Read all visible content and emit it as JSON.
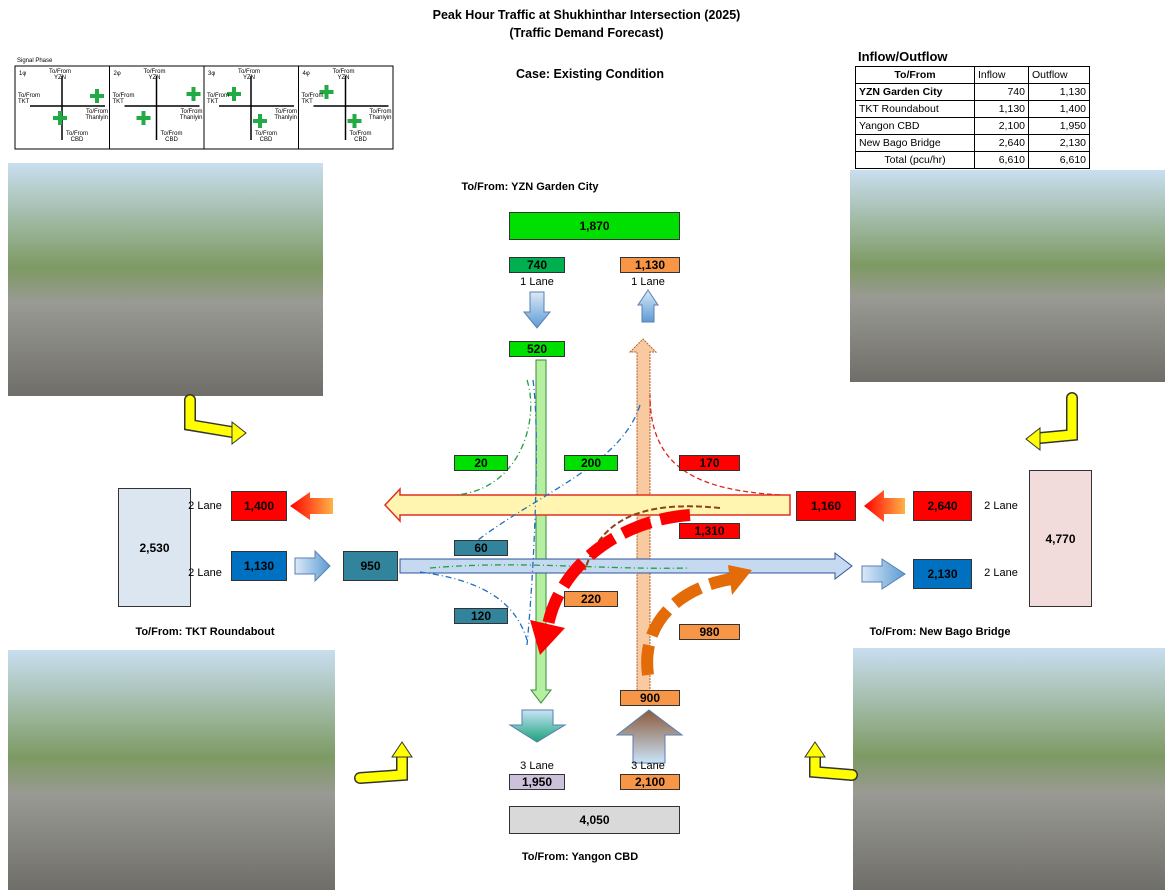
{
  "title": "Peak Hour Traffic at Shukhinthar Intersection (2025)",
  "subtitle": "(Traffic Demand Forecast)",
  "case": "Case: Existing Condition",
  "signal_phase": {
    "label": "Signal Phase",
    "phases": [
      {
        "name": "1φ",
        "top": "To/From\nYZN",
        "left": "To/From\nTKT",
        "right": "To/From\nThanlyin",
        "bottom": "To/From\nCBD"
      },
      {
        "name": "2φ",
        "top": "To/From\nYZN",
        "left": "To/From\nTKT",
        "right": "To/From\nThanlyin",
        "bottom": "To/From\nCBD"
      },
      {
        "name": "3φ",
        "top": "To/From\nYZN",
        "left": "To/From\nTKT",
        "right": "To/From\nThanlyin",
        "bottom": "To/From\nCBD"
      },
      {
        "name": "4φ",
        "top": "To/From\nYZN",
        "left": "To/From\nTKT",
        "right": "To/From\nThanlyin",
        "bottom": "To/From\nCBD"
      }
    ]
  },
  "inflow_outflow": {
    "title": "Inflow/Outflow",
    "header": [
      "To/From",
      "Inflow",
      "Outflow"
    ],
    "rows": [
      [
        "YZN Garden City",
        "740",
        "1,130"
      ],
      [
        "TKT Roundabout",
        "1,130",
        "1,400"
      ],
      [
        "Yangon CBD",
        "2,100",
        "1,950"
      ],
      [
        "New Bago Bridge",
        "2,640",
        "2,130"
      ],
      [
        "Total (pcu/hr)",
        "6,610",
        "6,610"
      ]
    ]
  },
  "north": {
    "label": "To/From: YZN Garden City",
    "total": "1,870",
    "inflow": "740",
    "outflow": "1,130",
    "lanes_in": "1 Lane",
    "lanes_out": "1 Lane",
    "approach": "520"
  },
  "west": {
    "label": "To/From: TKT Roundabout",
    "total": "2,530",
    "inflow": "1,130",
    "outflow": "1,400",
    "lanes_in": "2 Lane",
    "lanes_out": "2 Lane",
    "approach": "950"
  },
  "east": {
    "label": "To/From: New Bago Bridge",
    "total": "4,770",
    "inflow": "2,640",
    "outflow": "2,130",
    "lanes_in": "2 Lane",
    "lanes_out": "2 Lane",
    "approach": "1,160"
  },
  "south": {
    "label": "To/From: Yangon CBD",
    "total": "4,050",
    "inflow": "2,100",
    "outflow": "1,950",
    "lanes_in": "3 Lane",
    "lanes_out": "3 Lane",
    "approach": "900"
  },
  "movements": [
    "20",
    "200",
    "170",
    "1,310",
    "60",
    "120",
    "220",
    "980"
  ]
}
